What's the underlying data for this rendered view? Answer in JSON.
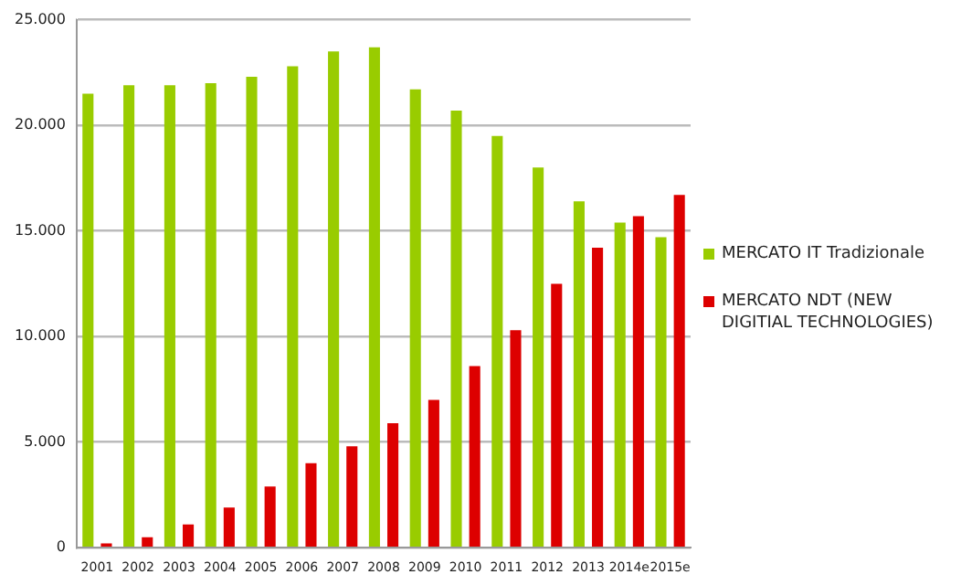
{
  "chart_data": {
    "type": "bar",
    "categories": [
      "2001",
      "2002",
      "2003",
      "2004",
      "2005",
      "2006",
      "2007",
      "2008",
      "2009",
      "2010",
      "2011",
      "2012",
      "2013",
      "2014e",
      "2015e"
    ],
    "series": [
      {
        "name": "MERCATO IT Tradizionale",
        "color": "#99cc00",
        "values": [
          21500,
          21900,
          21900,
          22000,
          22300,
          22800,
          23500,
          23700,
          21700,
          20700,
          19500,
          18000,
          16400,
          15400,
          14700
        ]
      },
      {
        "name": "MERCATO NDT (NEW DIGITIAL TECHNOLOGIES)",
        "color": "#dd0000",
        "values": [
          200,
          500,
          1100,
          1900,
          2900,
          4000,
          4800,
          5900,
          7000,
          8600,
          10300,
          12500,
          14200,
          15700,
          16700
        ]
      }
    ],
    "ylim": [
      0,
      25000
    ],
    "yticks": [
      {
        "value": 0,
        "label": "0"
      },
      {
        "value": 5000,
        "label": "5.000"
      },
      {
        "value": 10000,
        "label": "10.000"
      },
      {
        "value": 15000,
        "label": "15.000"
      },
      {
        "value": 20000,
        "label": "20.000"
      },
      {
        "value": 25000,
        "label": "25.000"
      }
    ],
    "grid": "y",
    "legend": "right"
  }
}
